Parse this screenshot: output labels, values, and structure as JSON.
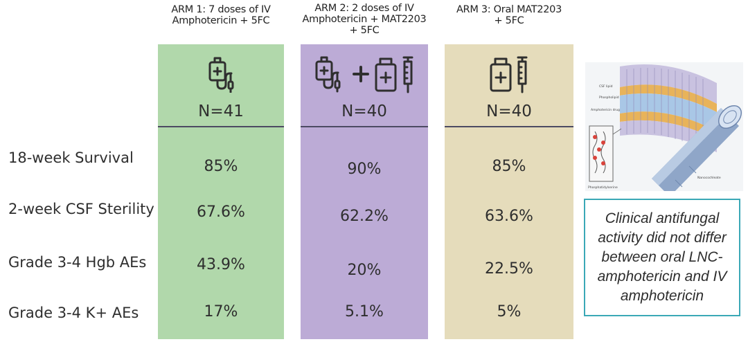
{
  "arms": [
    {
      "header_lines": [
        "ARM 1: 7 doses of IV",
        "Amphotericin + 5FC"
      ],
      "n_label": "N=41",
      "icon": "iv-bag-icon",
      "values": [
        "85%",
        "67.6%",
        "43.9%",
        "17%"
      ],
      "color": "#b1d8ab"
    },
    {
      "header_lines": [
        "ARM 2: 2 doses of IV",
        "Amphotericin + MAT2203",
        "+ 5FC"
      ],
      "n_label": "N=40",
      "icon": "iv-bag-plus-pill-bottle-icon",
      "values": [
        "90%",
        "62.2%",
        "20%",
        "5.1%"
      ],
      "color": "#bcabd6"
    },
    {
      "header_lines": [
        "ARM 3:  Oral MAT2203",
        "+ 5FC"
      ],
      "n_label": "N=40",
      "icon": "pill-bottle-syringe-icon",
      "values": [
        "85%",
        "63.6%",
        "22.5%",
        "5%"
      ],
      "color": "#e5dcbb"
    }
  ],
  "rows": [
    {
      "label": "18-week Survival"
    },
    {
      "label": "2-week CSF Sterility"
    },
    {
      "label": "Grade 3-4 Hgb AEs"
    },
    {
      "label": "Grade 3-4 K+ AEs"
    }
  ],
  "callout": {
    "text": "Clinical antifungal activity did not differ between oral LNC-amphotericin and IV amphotericin",
    "border_color": "#3aa8b6"
  },
  "figure": {
    "labels": [
      "CSF lipid",
      "Phospholipid",
      "Amphotericin drug",
      "Phosphatidylserine"
    ],
    "caption_right": "Nanocochleate"
  }
}
